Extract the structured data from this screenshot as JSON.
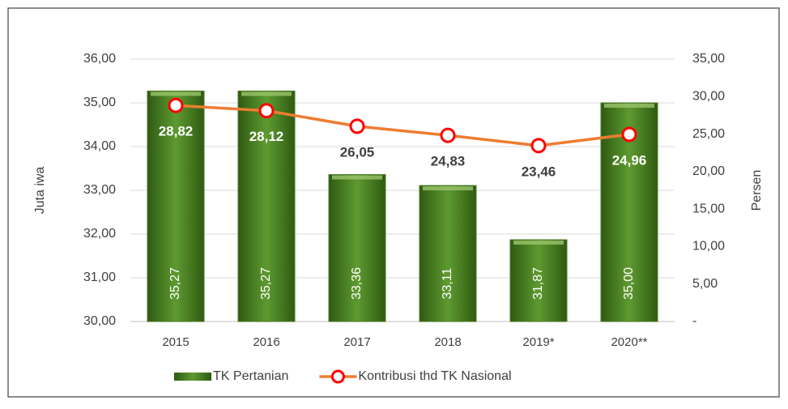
{
  "chart_data": {
    "type": "bar",
    "categories": [
      "2015",
      "2016",
      "2017",
      "2018",
      "2019*",
      "2020**"
    ],
    "y_label": "Juta iwa",
    "y2_label": "Persen",
    "ylim": [
      30,
      36
    ],
    "yticks": [
      {
        "value": 30,
        "label": "30,00"
      },
      {
        "value": 31,
        "label": "31,00"
      },
      {
        "value": 32,
        "label": "32,00"
      },
      {
        "value": 33,
        "label": "33,00"
      },
      {
        "value": 34,
        "label": "34,00"
      },
      {
        "value": 35,
        "label": "35,00"
      },
      {
        "value": 36,
        "label": "36,00"
      }
    ],
    "y2lim": [
      0,
      35
    ],
    "y2ticks": [
      {
        "value": 0,
        "label": "-"
      },
      {
        "value": 5,
        "label": "5,00"
      },
      {
        "value": 10,
        "label": "10,00"
      },
      {
        "value": 15,
        "label": "15,00"
      },
      {
        "value": 20,
        "label": "20,00"
      },
      {
        "value": 25,
        "label": "25,00"
      },
      {
        "value": 30,
        "label": "30,00"
      },
      {
        "value": 35,
        "label": "35,00"
      }
    ],
    "grid": true,
    "legend": "bottom",
    "series": [
      {
        "name": "TK Pertanian",
        "type": "bar",
        "color": "#4a7a24",
        "values": [
          35.27,
          35.27,
          33.36,
          33.11,
          31.87,
          35.0
        ],
        "value_labels": [
          "35,27",
          "35,27",
          "33,36",
          "33,11",
          "31,87",
          "35,00"
        ]
      },
      {
        "name": "Kontribusi thd TK Nasional",
        "type": "line",
        "axis": "y2",
        "color": "#ed7d31",
        "values": [
          28.82,
          28.12,
          26.05,
          24.83,
          23.46,
          24.96
        ],
        "value_labels": [
          "28,82",
          "28,12",
          "26,05",
          "24,83",
          "23,46",
          "24,96"
        ]
      }
    ]
  }
}
